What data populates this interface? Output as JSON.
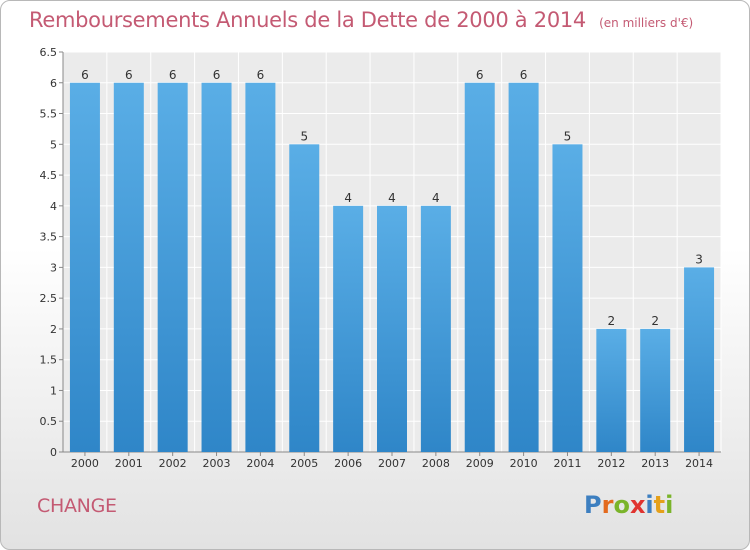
{
  "chart_data": {
    "type": "bar",
    "title": "Remboursements Annuels de la Dette de 2000 à 2014",
    "subtitle": "(en milliers d'€)",
    "categories": [
      "2000",
      "2001",
      "2002",
      "2003",
      "2004",
      "2005",
      "2006",
      "2007",
      "2008",
      "2009",
      "2010",
      "2011",
      "2012",
      "2013",
      "2014"
    ],
    "values": [
      6,
      6,
      6,
      6,
      6,
      5,
      4,
      4,
      4,
      6,
      6,
      5,
      2,
      2,
      3
    ],
    "ylim": [
      0,
      6.5
    ],
    "yticks": [
      "0",
      "0.5",
      "1",
      "1.5",
      "2",
      "2.5",
      "3",
      "3.5",
      "4",
      "4.5",
      "5",
      "5.5",
      "6",
      "6.5"
    ],
    "grid": true,
    "xlabel": "",
    "ylabel": "",
    "bar_color": "#2f86c8",
    "bar_color_top": "#5aaee6",
    "title_color": "#c45a73"
  },
  "commune": "CHANGE",
  "logo": {
    "text": "Proxiti",
    "colors": [
      "#3d7fc0",
      "#e36a1e",
      "#7ab42a",
      "#e0332f",
      "#3d7fc0",
      "#e5a01a",
      "#7ab42a"
    ]
  }
}
